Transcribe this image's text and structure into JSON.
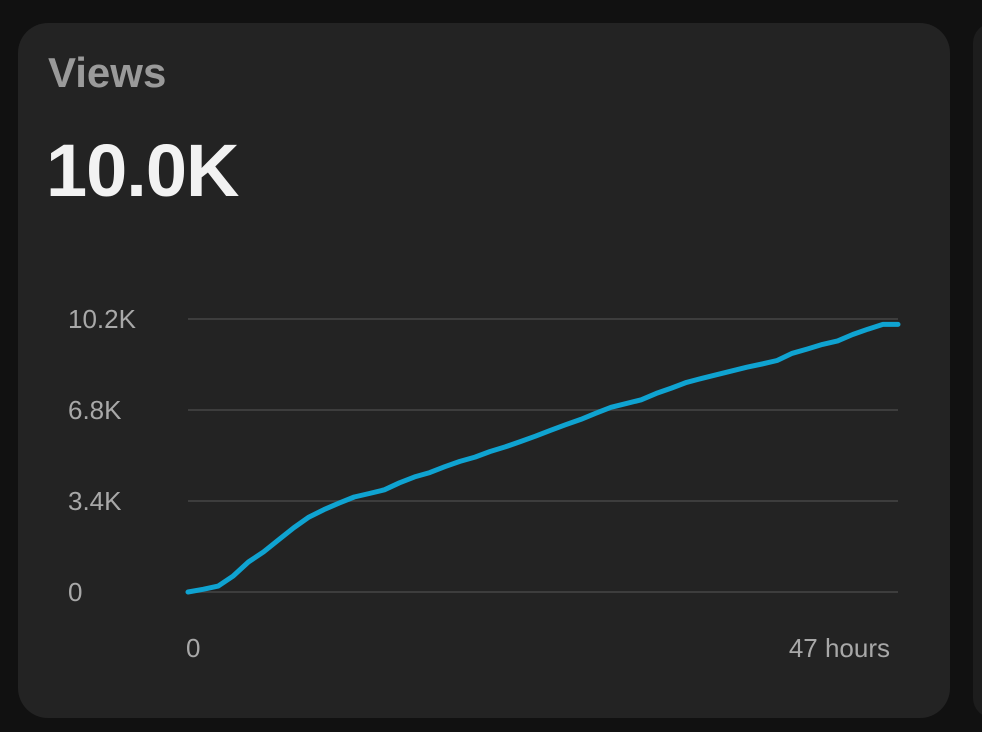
{
  "card": {
    "title": "Views",
    "value": "10.0K"
  },
  "colors": {
    "line": "#0fa3d1",
    "grid": "#3d3d3d",
    "card_bg": "#232323",
    "page_bg": "#111111"
  },
  "chart_data": {
    "type": "line",
    "title": "",
    "xlabel": "",
    "ylabel": "",
    "x_tick_labels": [
      "0",
      "47 hours"
    ],
    "y_tick_labels": [
      "0",
      "3.4K",
      "6.8K",
      "10.2K"
    ],
    "y_ticks": [
      0,
      3400,
      6800,
      10200
    ],
    "xlim": [
      0,
      47
    ],
    "ylim": [
      0,
      10200
    ],
    "grid": true,
    "series": [
      {
        "color": "#0fa3d1",
        "x": [
          0,
          1,
          2,
          3,
          4,
          5,
          6,
          7,
          8,
          9,
          10,
          11,
          12,
          13,
          14,
          15,
          16,
          17,
          18,
          19,
          20,
          21,
          22,
          23,
          24,
          25,
          26,
          27,
          28,
          29,
          30,
          31,
          32,
          33,
          34,
          35,
          36,
          37,
          38,
          39,
          40,
          41,
          42,
          43,
          44,
          45,
          46,
          47
        ],
        "values": [
          0,
          100,
          220,
          600,
          1120,
          1500,
          1950,
          2400,
          2800,
          3080,
          3320,
          3550,
          3680,
          3820,
          4080,
          4300,
          4460,
          4680,
          4880,
          5040,
          5250,
          5420,
          5620,
          5820,
          6040,
          6250,
          6450,
          6680,
          6900,
          7040,
          7180,
          7420,
          7620,
          7830,
          7980,
          8120,
          8260,
          8400,
          8520,
          8650,
          8920,
          9080,
          9250,
          9380,
          9620,
          9820,
          10000,
          10000
        ]
      }
    ]
  }
}
